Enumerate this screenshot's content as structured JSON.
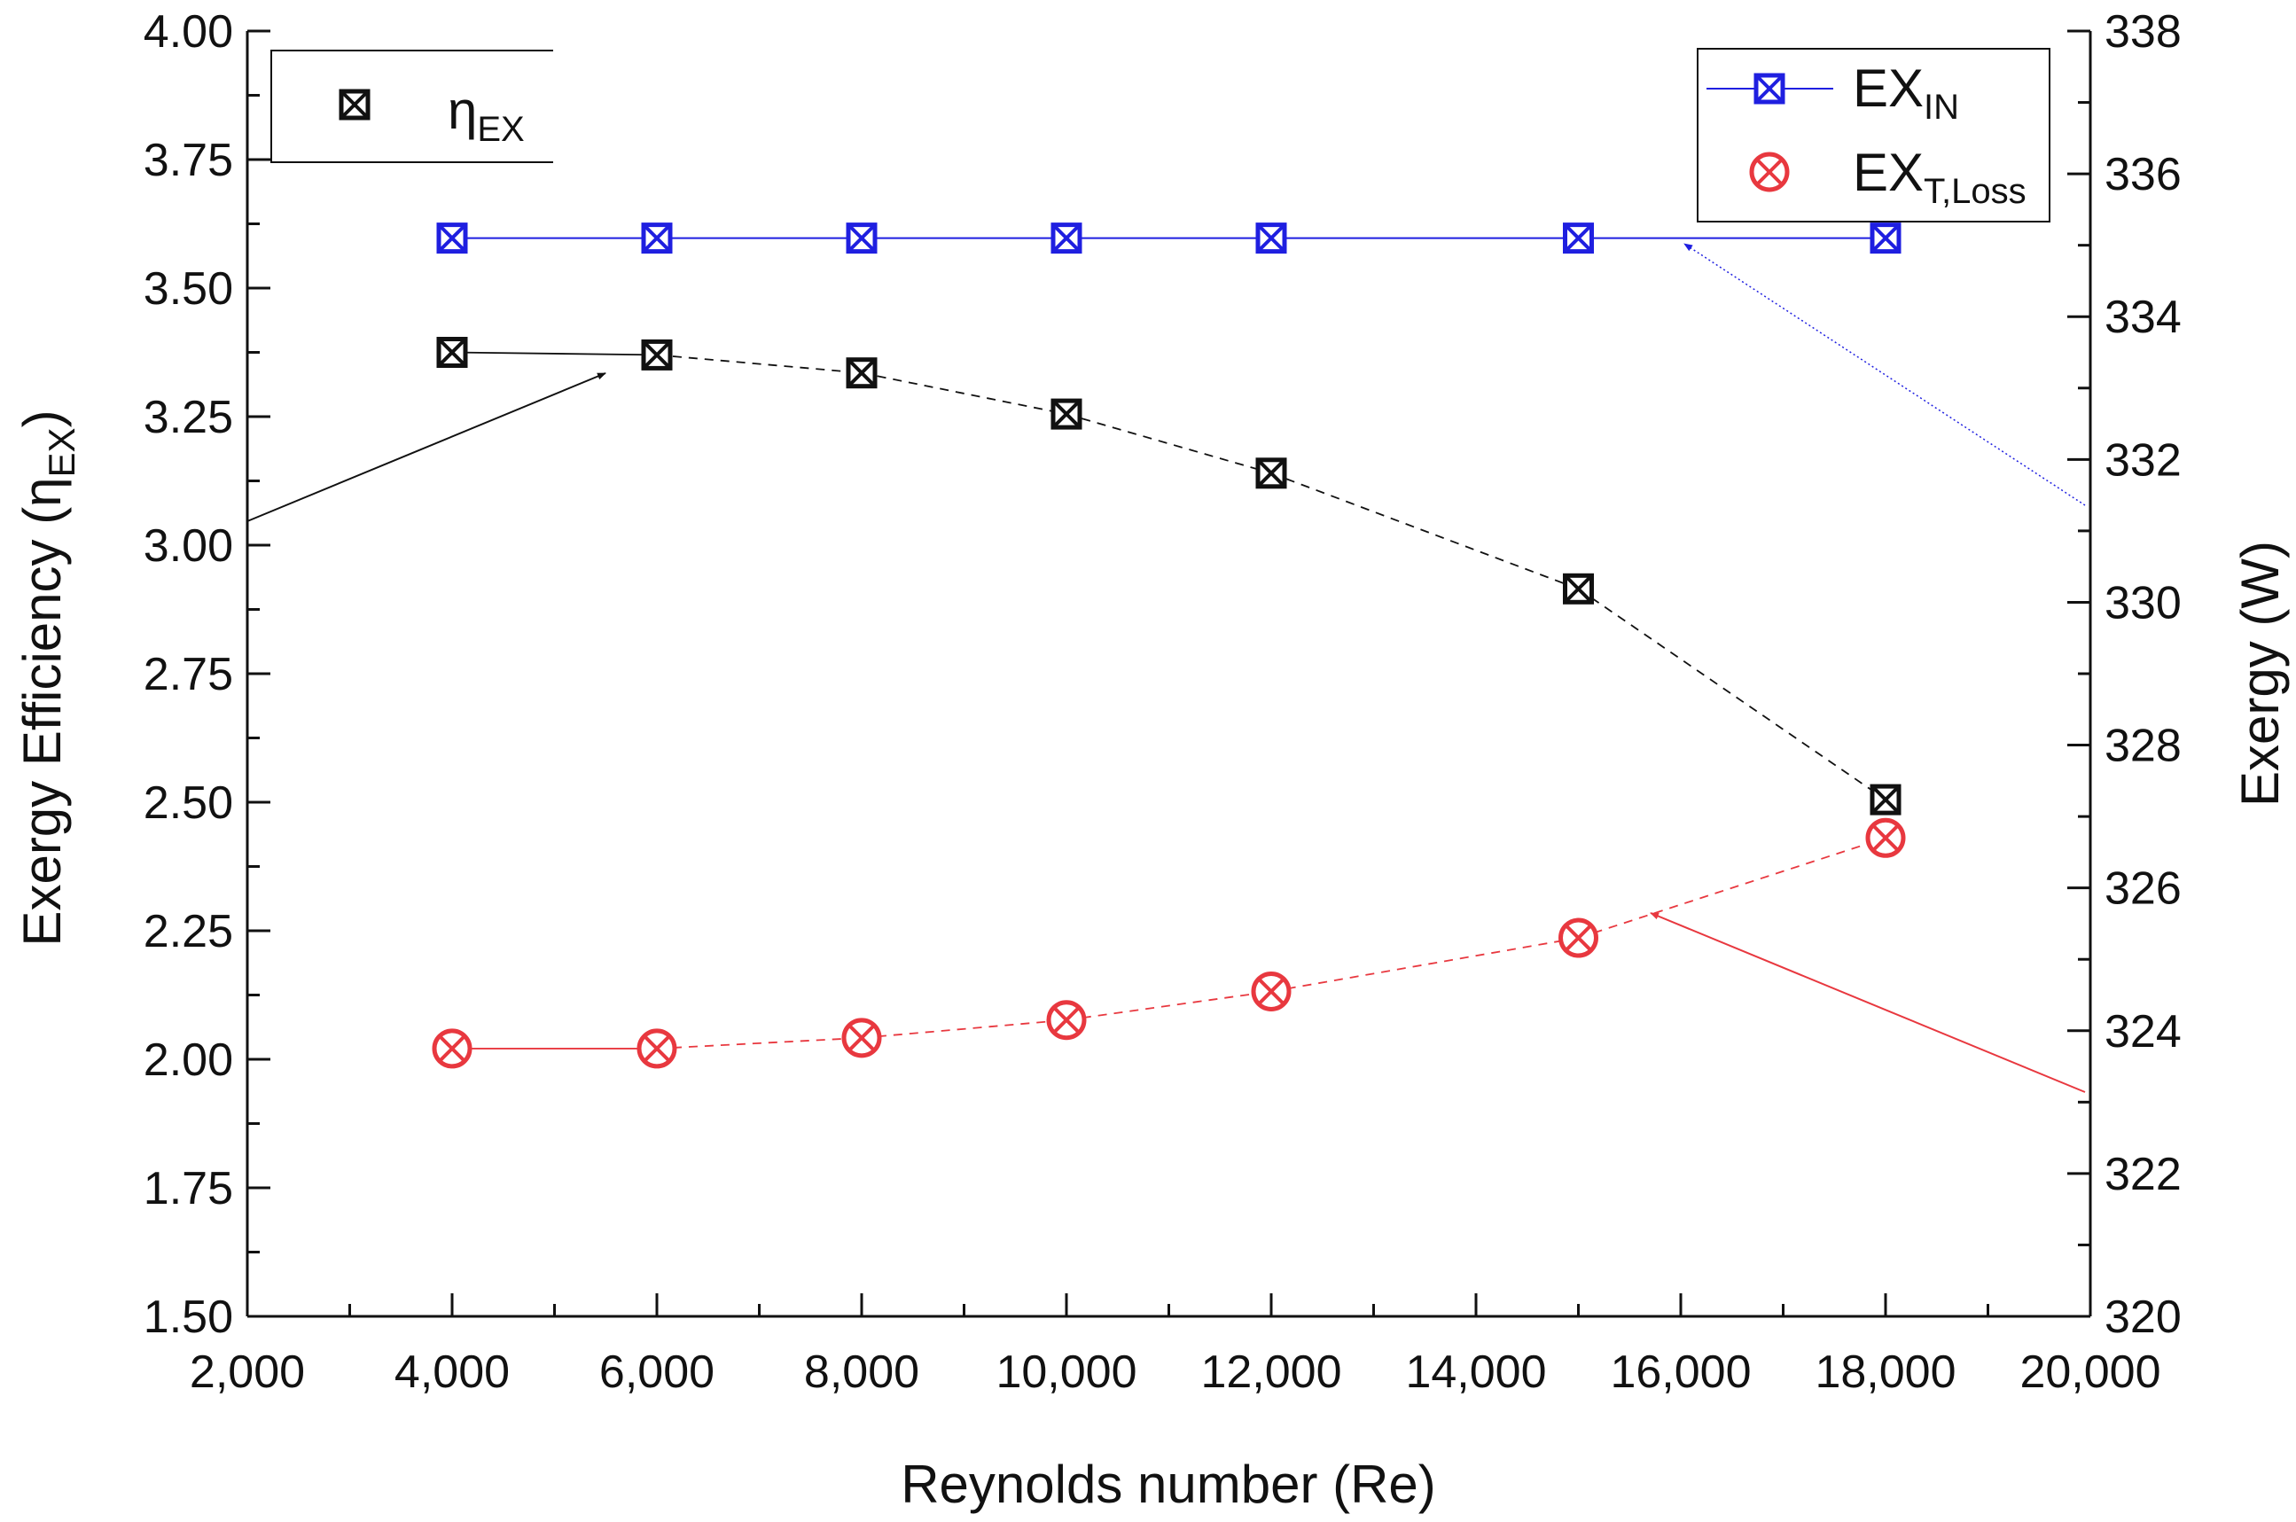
{
  "chart_data": {
    "type": "line",
    "title": "",
    "xlabel": "Reynolds number (Re)",
    "ylabel_left": {
      "main": "Exergy Efficiency (η",
      "sub": "EX",
      "end": ")"
    },
    "ylabel_right": "Exergy (W)",
    "xlim": [
      2000,
      20000
    ],
    "ylim_left": [
      1.5,
      4.0
    ],
    "ylim_right": [
      320,
      338
    ],
    "x_ticks": [
      2000,
      4000,
      6000,
      8000,
      10000,
      12000,
      14000,
      16000,
      18000,
      20000
    ],
    "x_tick_labels": [
      "2,000",
      "4,000",
      "6,000",
      "8,000",
      "10,000",
      "12,000",
      "14,000",
      "16,000",
      "18,000",
      "20,000"
    ],
    "y_left_ticks": [
      1.5,
      1.75,
      2.0,
      2.25,
      2.5,
      2.75,
      3.0,
      3.25,
      3.5,
      3.75,
      4.0
    ],
    "y_left_tick_labels": [
      "1.50",
      "1.75",
      "2.00",
      "2.25",
      "2.50",
      "2.75",
      "3.00",
      "3.25",
      "3.50",
      "3.75",
      "4.00"
    ],
    "y_right_ticks": [
      320,
      322,
      324,
      326,
      328,
      330,
      332,
      334,
      336,
      338
    ],
    "y_right_tick_labels": [
      "320",
      "322",
      "324",
      "326",
      "328",
      "330",
      "332",
      "334",
      "336",
      "338"
    ],
    "grid": false,
    "series": [
      {
        "name": "η_EX",
        "legend_main": "η",
        "legend_sub": "EX",
        "axis": "left",
        "color": "#111111",
        "marker": "square-x",
        "x": [
          4000,
          6000,
          8000,
          10000,
          12000,
          15000,
          18000
        ],
        "values": [
          3.375,
          3.37,
          3.335,
          3.255,
          3.14,
          2.915,
          2.505
        ]
      },
      {
        "name": "EX_IN",
        "legend_main": "EX",
        "legend_sub": "IN",
        "axis": "right",
        "color": "#1f1fe0",
        "marker": "square-x",
        "x": [
          4000,
          6000,
          8000,
          10000,
          12000,
          15000,
          18000
        ],
        "values": [
          335.1,
          335.1,
          335.1,
          335.1,
          335.1,
          335.1,
          335.1
        ]
      },
      {
        "name": "EX_T,Loss",
        "legend_main": "EX",
        "legend_sub": "T,Loss",
        "axis": "right",
        "color": "#e8383f",
        "marker": "circle-x",
        "x": [
          4000,
          6000,
          8000,
          10000,
          12000,
          15000,
          18000
        ],
        "values": [
          323.75,
          323.75,
          323.9,
          324.15,
          324.55,
          325.3,
          326.7
        ]
      }
    ],
    "legend_position": [
      "top-left",
      "top-right"
    ]
  }
}
